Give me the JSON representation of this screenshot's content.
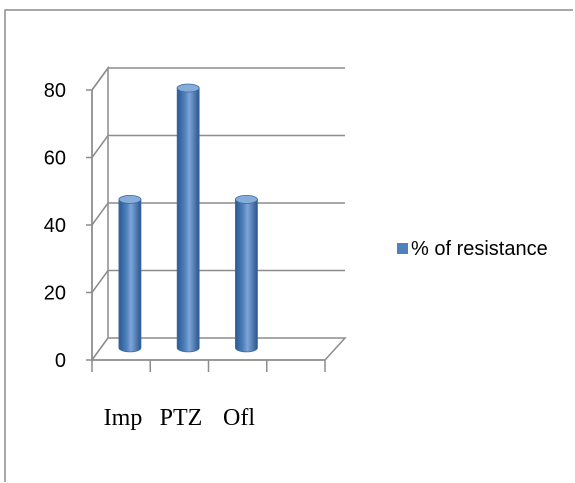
{
  "chart_data": {
    "type": "bar",
    "categories": [
      "Imp",
      "PTZ",
      "Ofl"
    ],
    "series": [
      {
        "name": "% of resistance",
        "values": [
          44,
          77,
          44
        ],
        "color": "#4f81bd"
      }
    ],
    "yticks": [
      "0",
      "20",
      "40",
      "60",
      "80"
    ],
    "ylim": [
      0,
      80
    ],
    "grid": true,
    "legend": "right",
    "title": "",
    "xlabel": "",
    "ylabel": ""
  }
}
